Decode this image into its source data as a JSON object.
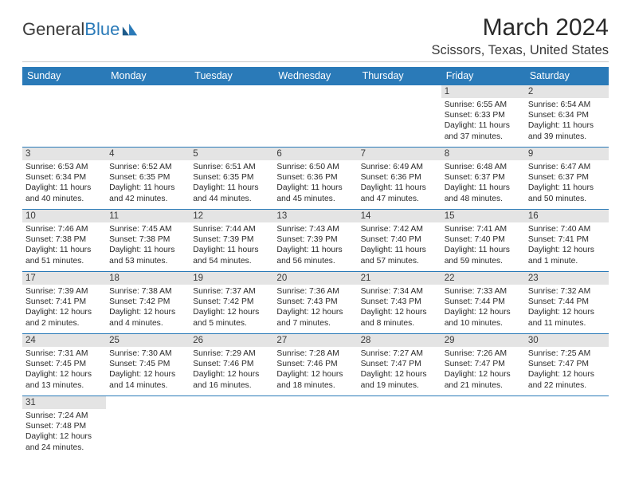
{
  "logo": {
    "text1": "General",
    "text2": "Blue"
  },
  "title": "March 2024",
  "location": "Scissors, Texas, United States",
  "colors": {
    "header_bg": "#2a7ab8",
    "header_fg": "#ffffff",
    "strip_bg": "#e4e4e4",
    "row_divider": "#2a7ab8",
    "body_text": "#2a2a2a",
    "page_bg": "#ffffff"
  },
  "typography": {
    "title_fontsize": 30,
    "location_fontsize": 16.5,
    "dayheader_fontsize": 12.5,
    "cell_fontsize": 10.3,
    "date_fontsize": 11.5,
    "logo_fontsize": 22
  },
  "day_names": [
    "Sunday",
    "Monday",
    "Tuesday",
    "Wednesday",
    "Thursday",
    "Friday",
    "Saturday"
  ],
  "weeks": [
    [
      {
        "empty": true
      },
      {
        "empty": true
      },
      {
        "empty": true
      },
      {
        "empty": true
      },
      {
        "empty": true
      },
      {
        "date": "1",
        "sunrise": "Sunrise: 6:55 AM",
        "sunset": "Sunset: 6:33 PM",
        "daylight": "Daylight: 11 hours and 37 minutes."
      },
      {
        "date": "2",
        "sunrise": "Sunrise: 6:54 AM",
        "sunset": "Sunset: 6:34 PM",
        "daylight": "Daylight: 11 hours and 39 minutes."
      }
    ],
    [
      {
        "date": "3",
        "sunrise": "Sunrise: 6:53 AM",
        "sunset": "Sunset: 6:34 PM",
        "daylight": "Daylight: 11 hours and 40 minutes."
      },
      {
        "date": "4",
        "sunrise": "Sunrise: 6:52 AM",
        "sunset": "Sunset: 6:35 PM",
        "daylight": "Daylight: 11 hours and 42 minutes."
      },
      {
        "date": "5",
        "sunrise": "Sunrise: 6:51 AM",
        "sunset": "Sunset: 6:35 PM",
        "daylight": "Daylight: 11 hours and 44 minutes."
      },
      {
        "date": "6",
        "sunrise": "Sunrise: 6:50 AM",
        "sunset": "Sunset: 6:36 PM",
        "daylight": "Daylight: 11 hours and 45 minutes."
      },
      {
        "date": "7",
        "sunrise": "Sunrise: 6:49 AM",
        "sunset": "Sunset: 6:36 PM",
        "daylight": "Daylight: 11 hours and 47 minutes."
      },
      {
        "date": "8",
        "sunrise": "Sunrise: 6:48 AM",
        "sunset": "Sunset: 6:37 PM",
        "daylight": "Daylight: 11 hours and 48 minutes."
      },
      {
        "date": "9",
        "sunrise": "Sunrise: 6:47 AM",
        "sunset": "Sunset: 6:37 PM",
        "daylight": "Daylight: 11 hours and 50 minutes."
      }
    ],
    [
      {
        "date": "10",
        "sunrise": "Sunrise: 7:46 AM",
        "sunset": "Sunset: 7:38 PM",
        "daylight": "Daylight: 11 hours and 51 minutes."
      },
      {
        "date": "11",
        "sunrise": "Sunrise: 7:45 AM",
        "sunset": "Sunset: 7:38 PM",
        "daylight": "Daylight: 11 hours and 53 minutes."
      },
      {
        "date": "12",
        "sunrise": "Sunrise: 7:44 AM",
        "sunset": "Sunset: 7:39 PM",
        "daylight": "Daylight: 11 hours and 54 minutes."
      },
      {
        "date": "13",
        "sunrise": "Sunrise: 7:43 AM",
        "sunset": "Sunset: 7:39 PM",
        "daylight": "Daylight: 11 hours and 56 minutes."
      },
      {
        "date": "14",
        "sunrise": "Sunrise: 7:42 AM",
        "sunset": "Sunset: 7:40 PM",
        "daylight": "Daylight: 11 hours and 57 minutes."
      },
      {
        "date": "15",
        "sunrise": "Sunrise: 7:41 AM",
        "sunset": "Sunset: 7:40 PM",
        "daylight": "Daylight: 11 hours and 59 minutes."
      },
      {
        "date": "16",
        "sunrise": "Sunrise: 7:40 AM",
        "sunset": "Sunset: 7:41 PM",
        "daylight": "Daylight: 12 hours and 1 minute."
      }
    ],
    [
      {
        "date": "17",
        "sunrise": "Sunrise: 7:39 AM",
        "sunset": "Sunset: 7:41 PM",
        "daylight": "Daylight: 12 hours and 2 minutes."
      },
      {
        "date": "18",
        "sunrise": "Sunrise: 7:38 AM",
        "sunset": "Sunset: 7:42 PM",
        "daylight": "Daylight: 12 hours and 4 minutes."
      },
      {
        "date": "19",
        "sunrise": "Sunrise: 7:37 AM",
        "sunset": "Sunset: 7:42 PM",
        "daylight": "Daylight: 12 hours and 5 minutes."
      },
      {
        "date": "20",
        "sunrise": "Sunrise: 7:36 AM",
        "sunset": "Sunset: 7:43 PM",
        "daylight": "Daylight: 12 hours and 7 minutes."
      },
      {
        "date": "21",
        "sunrise": "Sunrise: 7:34 AM",
        "sunset": "Sunset: 7:43 PM",
        "daylight": "Daylight: 12 hours and 8 minutes."
      },
      {
        "date": "22",
        "sunrise": "Sunrise: 7:33 AM",
        "sunset": "Sunset: 7:44 PM",
        "daylight": "Daylight: 12 hours and 10 minutes."
      },
      {
        "date": "23",
        "sunrise": "Sunrise: 7:32 AM",
        "sunset": "Sunset: 7:44 PM",
        "daylight": "Daylight: 12 hours and 11 minutes."
      }
    ],
    [
      {
        "date": "24",
        "sunrise": "Sunrise: 7:31 AM",
        "sunset": "Sunset: 7:45 PM",
        "daylight": "Daylight: 12 hours and 13 minutes."
      },
      {
        "date": "25",
        "sunrise": "Sunrise: 7:30 AM",
        "sunset": "Sunset: 7:45 PM",
        "daylight": "Daylight: 12 hours and 14 minutes."
      },
      {
        "date": "26",
        "sunrise": "Sunrise: 7:29 AM",
        "sunset": "Sunset: 7:46 PM",
        "daylight": "Daylight: 12 hours and 16 minutes."
      },
      {
        "date": "27",
        "sunrise": "Sunrise: 7:28 AM",
        "sunset": "Sunset: 7:46 PM",
        "daylight": "Daylight: 12 hours and 18 minutes."
      },
      {
        "date": "28",
        "sunrise": "Sunrise: 7:27 AM",
        "sunset": "Sunset: 7:47 PM",
        "daylight": "Daylight: 12 hours and 19 minutes."
      },
      {
        "date": "29",
        "sunrise": "Sunrise: 7:26 AM",
        "sunset": "Sunset: 7:47 PM",
        "daylight": "Daylight: 12 hours and 21 minutes."
      },
      {
        "date": "30",
        "sunrise": "Sunrise: 7:25 AM",
        "sunset": "Sunset: 7:47 PM",
        "daylight": "Daylight: 12 hours and 22 minutes."
      }
    ],
    [
      {
        "date": "31",
        "sunrise": "Sunrise: 7:24 AM",
        "sunset": "Sunset: 7:48 PM",
        "daylight": "Daylight: 12 hours and 24 minutes."
      },
      {
        "empty": true,
        "filler": true
      },
      {
        "empty": true,
        "filler": true
      },
      {
        "empty": true,
        "filler": true
      },
      {
        "empty": true,
        "filler": true
      },
      {
        "empty": true,
        "filler": true
      },
      {
        "empty": true,
        "filler": true
      }
    ]
  ]
}
